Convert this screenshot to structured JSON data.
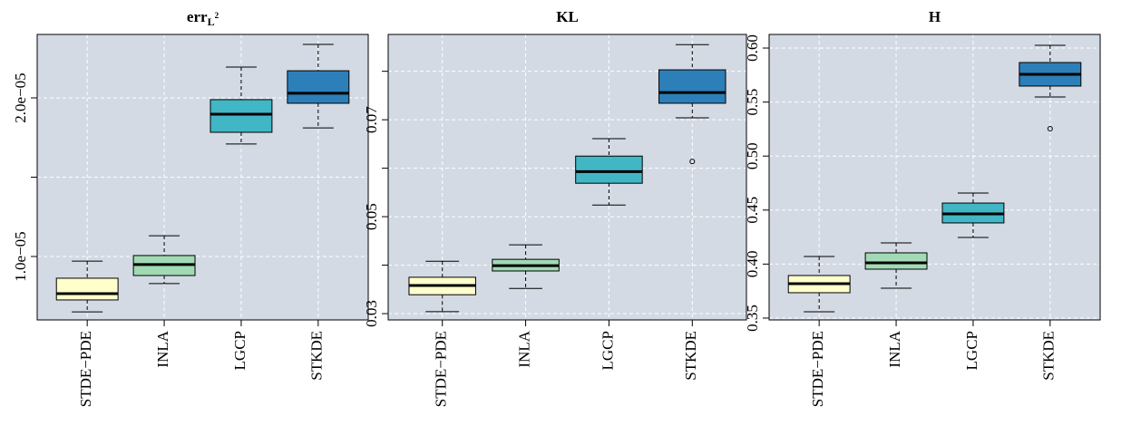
{
  "chart_data": [
    {
      "type": "box",
      "title": "err",
      "title_subscript": "L",
      "title_superscript": "2",
      "categories": [
        "STDE−PDE",
        "INLA",
        "LGCP",
        "STKDE"
      ],
      "colors": [
        "#ffffcc",
        "#a1dab4",
        "#41b6c4",
        "#2c7fb8"
      ],
      "boxes": [
        {
          "min": 6.51e-06,
          "q1": 7.26e-06,
          "median": 7.66e-06,
          "q3": 8.63e-06,
          "max": 9.71e-06,
          "outliers": []
        },
        {
          "min": 8.29e-06,
          "q1": 8.8e-06,
          "median": 9.49e-06,
          "q3": 1.006e-05,
          "max": 1.131e-05,
          "outliers": []
        },
        {
          "min": 1.709e-05,
          "q1": 1.783e-05,
          "median": 1.897e-05,
          "q3": 1.989e-05,
          "max": 2.194e-05,
          "outliers": []
        },
        {
          "min": 1.811e-05,
          "q1": 1.966e-05,
          "median": 2.029e-05,
          "q3": 2.171e-05,
          "max": 2.337e-05,
          "outliers": []
        }
      ],
      "ylim": [
        6e-06,
        2.4e-05
      ],
      "yticks": [
        {
          "value": 1e-05,
          "label": "1.0e−05"
        },
        {
          "value": 2e-05,
          "label": "2.0e−05"
        }
      ],
      "ygrid": [
        1e-05,
        1.5e-05,
        2e-05
      ],
      "grid": true
    },
    {
      "type": "box",
      "title": "KL",
      "categories": [
        "STDE−PDE",
        "INLA",
        "LGCP",
        "STKDE"
      ],
      "colors": [
        "#ffffcc",
        "#a1dab4",
        "#41b6c4",
        "#2c7fb8"
      ],
      "boxes": [
        {
          "min": 0.0304,
          "q1": 0.0339,
          "median": 0.0358,
          "q3": 0.0375,
          "max": 0.0408,
          "outliers": []
        },
        {
          "min": 0.0352,
          "q1": 0.0388,
          "median": 0.0399,
          "q3": 0.0412,
          "max": 0.0442,
          "outliers": []
        },
        {
          "min": 0.0524,
          "q1": 0.0569,
          "median": 0.0593,
          "q3": 0.0625,
          "max": 0.0661,
          "outliers": []
        },
        {
          "min": 0.0704,
          "q1": 0.0734,
          "median": 0.0756,
          "q3": 0.0803,
          "max": 0.0855,
          "outliers": [
            0.0614
          ]
        }
      ],
      "ylim": [
        0.0287,
        0.0876
      ],
      "yticks": [
        0.03,
        0.05,
        0.07
      ],
      "ygrid": [
        0.03,
        0.04,
        0.05,
        0.06,
        0.07,
        0.08
      ],
      "grid": true
    },
    {
      "type": "box",
      "title": "H",
      "categories": [
        "STDE−PDE",
        "INLA",
        "LGCP",
        "STKDE"
      ],
      "colors": [
        "#ffffcc",
        "#a1dab4",
        "#41b6c4",
        "#2c7fb8"
      ],
      "boxes": [
        {
          "min": 0.3559,
          "q1": 0.3735,
          "median": 0.3819,
          "q3": 0.3894,
          "max": 0.407,
          "outliers": []
        },
        {
          "min": 0.3777,
          "q1": 0.3953,
          "median": 0.4012,
          "q3": 0.4104,
          "max": 0.4196,
          "outliers": []
        },
        {
          "min": 0.4247,
          "q1": 0.4381,
          "median": 0.4465,
          "q3": 0.4565,
          "max": 0.4658,
          "outliers": []
        },
        {
          "min": 0.5547,
          "q1": 0.5648,
          "median": 0.5757,
          "q3": 0.5866,
          "max": 0.6025,
          "outliers": [
            0.5253
          ]
        }
      ],
      "ylim": [
        0.3483,
        0.6126
      ],
      "yticks": [
        {
          "value": 0.35,
          "label": "0.35"
        },
        {
          "value": 0.4,
          "label": "0.40"
        },
        {
          "value": 0.45,
          "label": "0.45"
        },
        {
          "value": 0.5,
          "label": "0.50"
        },
        {
          "value": 0.55,
          "label": "0.55"
        },
        {
          "value": 0.6,
          "label": "0.60"
        }
      ],
      "grid": true
    }
  ]
}
